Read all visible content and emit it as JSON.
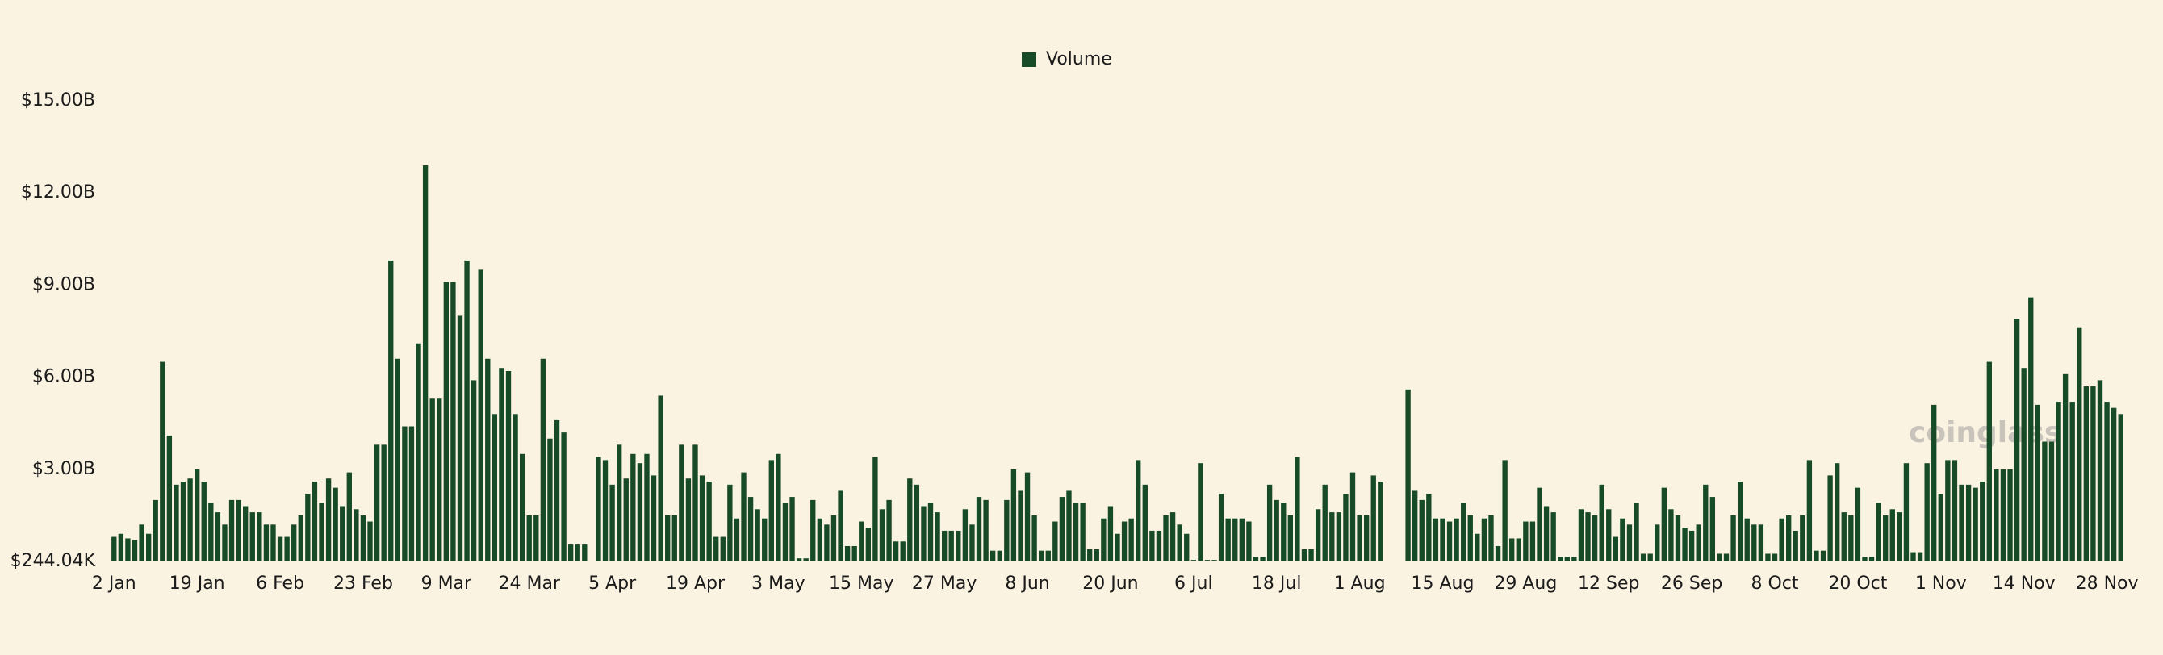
{
  "chart_data": {
    "type": "bar",
    "watermark": "coinglass",
    "legend": "top",
    "grid": false,
    "ylim": [
      244040,
      15000000000
    ],
    "yticks": [
      {
        "value": 244040,
        "label": "$244.04K"
      },
      {
        "value": 3000000000,
        "label": "$3.00B"
      },
      {
        "value": 6000000000,
        "label": "$6.00B"
      },
      {
        "value": 9000000000,
        "label": "$9.00B"
      },
      {
        "value": 12000000000,
        "label": "$12.00B"
      },
      {
        "value": 15000000000,
        "label": "$15.00B"
      }
    ],
    "categories": [
      "2 Jan",
      null,
      null,
      null,
      null,
      null,
      null,
      null,
      null,
      null,
      null,
      null,
      "19 Jan",
      null,
      null,
      null,
      null,
      null,
      null,
      null,
      null,
      null,
      null,
      null,
      "6 Feb",
      null,
      null,
      null,
      null,
      null,
      null,
      null,
      null,
      null,
      null,
      null,
      "23 Feb",
      null,
      null,
      null,
      null,
      null,
      null,
      null,
      null,
      null,
      null,
      null,
      "9 Mar",
      null,
      null,
      null,
      null,
      null,
      null,
      null,
      null,
      null,
      null,
      null,
      "24 Mar",
      null,
      null,
      null,
      null,
      null,
      null,
      null,
      null,
      null,
      null,
      null,
      "5 Apr",
      null,
      null,
      null,
      null,
      null,
      null,
      null,
      null,
      null,
      null,
      null,
      "19 Apr",
      null,
      null,
      null,
      null,
      null,
      null,
      null,
      null,
      null,
      null,
      null,
      "3 May",
      null,
      null,
      null,
      null,
      null,
      null,
      null,
      null,
      null,
      null,
      null,
      "15 May",
      null,
      null,
      null,
      null,
      null,
      null,
      null,
      null,
      null,
      null,
      null,
      "27 May",
      null,
      null,
      null,
      null,
      null,
      null,
      null,
      null,
      null,
      null,
      null,
      "8 Jun",
      null,
      null,
      null,
      null,
      null,
      null,
      null,
      null,
      null,
      null,
      null,
      "20 Jun",
      null,
      null,
      null,
      null,
      null,
      null,
      null,
      null,
      null,
      null,
      null,
      "6 Jul",
      null,
      null,
      null,
      null,
      null,
      null,
      null,
      null,
      null,
      null,
      null,
      "18 Jul",
      null,
      null,
      null,
      null,
      null,
      null,
      null,
      null,
      null,
      null,
      null,
      "1 Aug",
      null,
      null,
      null,
      null,
      null,
      null,
      null,
      null,
      null,
      null,
      null,
      "15 Aug",
      null,
      null,
      null,
      null,
      null,
      null,
      null,
      null,
      null,
      null,
      null,
      "29 Aug",
      null,
      null,
      null,
      null,
      null,
      null,
      null,
      null,
      null,
      null,
      null,
      "12 Sep",
      null,
      null,
      null,
      null,
      null,
      null,
      null,
      null,
      null,
      null,
      null,
      "26 Sep",
      null,
      null,
      null,
      null,
      null,
      null,
      null,
      null,
      null,
      null,
      null,
      "8 Oct",
      null,
      null,
      null,
      null,
      null,
      null,
      null,
      null,
      null,
      null,
      null,
      "20 Oct",
      null,
      null,
      null,
      null,
      null,
      null,
      null,
      null,
      null,
      null,
      null,
      "1 Nov",
      null,
      null,
      null,
      null,
      null,
      null,
      null,
      null,
      null,
      null,
      null,
      "14 Nov",
      null,
      null,
      null,
      null,
      null,
      null,
      null,
      null,
      null,
      null,
      null,
      "28 Nov",
      null,
      null
    ],
    "series": [
      {
        "name": "Volume",
        "color": "#174a27",
        "values": [
          800000000.0,
          900000000.0,
          750000000.0,
          700000000.0,
          1200000000.0,
          900000000.0,
          2000000000.0,
          6500000000.0,
          4100000000.0,
          2500000000.0,
          2600000000.0,
          2700000000.0,
          3000000000.0,
          2600000000.0,
          1900000000.0,
          1600000000.0,
          1200000000.0,
          2000000000.0,
          2000000000.0,
          1800000000.0,
          1600000000.0,
          1600000000.0,
          1200000000.0,
          1200000000.0,
          800000000.0,
          800000000.0,
          1200000000.0,
          1500000000.0,
          2200000000.0,
          2600000000.0,
          1900000000.0,
          2700000000.0,
          2400000000.0,
          1800000000.0,
          2900000000.0,
          1700000000.0,
          1500000000.0,
          1300000000.0,
          3800000000.0,
          3800000000.0,
          9800000000.0,
          6600000000.0,
          4400000000.0,
          4400000000.0,
          7100000000.0,
          12900000000.0,
          5300000000.0,
          5300000000.0,
          9100000000.0,
          9100000000.0,
          8000000000.0,
          9800000000.0,
          5900000000.0,
          9500000000.0,
          6600000000.0,
          4800000000.0,
          6300000000.0,
          6200000000.0,
          4800000000.0,
          3500000000.0,
          1500000000.0,
          1500000000.0,
          6600000000.0,
          4000000000.0,
          4600000000.0,
          4200000000.0,
          550000000.0,
          550000000.0,
          550000000.0,
          null,
          3400000000.0,
          3300000000.0,
          2500000000.0,
          3800000000.0,
          2700000000.0,
          3500000000.0,
          3200000000.0,
          3500000000.0,
          2800000000.0,
          5400000000.0,
          1500000000.0,
          1500000000.0,
          3800000000.0,
          2700000000.0,
          3800000000.0,
          2800000000.0,
          2600000000.0,
          800000000.0,
          800000000.0,
          2500000000.0,
          1400000000.0,
          2900000000.0,
          2100000000.0,
          1700000000.0,
          1400000000.0,
          3300000000.0,
          3500000000.0,
          1900000000.0,
          2100000000.0,
          100000000.0,
          100000000.0,
          2000000000.0,
          1400000000.0,
          1200000000.0,
          1500000000.0,
          2300000000.0,
          500000000.0,
          500000000.0,
          1300000000.0,
          1100000000.0,
          3400000000.0,
          1700000000.0,
          2000000000.0,
          650000000.0,
          650000000.0,
          2700000000.0,
          2500000000.0,
          1800000000.0,
          1900000000.0,
          1600000000.0,
          1000000000.0,
          1000000000.0,
          1000000000.0,
          1700000000.0,
          1200000000.0,
          2100000000.0,
          2000000000.0,
          350000000.0,
          350000000.0,
          2000000000.0,
          3000000000.0,
          2300000000.0,
          2900000000.0,
          1500000000.0,
          350000000.0,
          350000000.0,
          1300000000.0,
          2100000000.0,
          2300000000.0,
          1900000000.0,
          1900000000.0,
          400000000.0,
          400000000.0,
          1400000000.0,
          1800000000.0,
          900000000.0,
          1300000000.0,
          1400000000.0,
          3300000000.0,
          2500000000.0,
          1000000000.0,
          1000000000.0,
          1500000000.0,
          1600000000.0,
          1200000000.0,
          900000000.0,
          50000000.0,
          3200000000.0,
          50000000.0,
          50000000.0,
          2200000000.0,
          1400000000.0,
          1400000000.0,
          1400000000.0,
          1300000000.0,
          150000000.0,
          150000000.0,
          2500000000.0,
          2000000000.0,
          1900000000.0,
          1500000000.0,
          3400000000.0,
          400000000.0,
          400000000.0,
          1700000000.0,
          2500000000.0,
          1600000000.0,
          1600000000.0,
          2200000000.0,
          2900000000.0,
          1500000000.0,
          1500000000.0,
          2800000000.0,
          2600000000.0,
          null,
          null,
          null,
          5600000000.0,
          2300000000.0,
          2000000000.0,
          2200000000.0,
          1400000000.0,
          1400000000.0,
          1300000000.0,
          1400000000.0,
          1900000000.0,
          1500000000.0,
          900000000.0,
          1400000000.0,
          1500000000.0,
          500000000.0,
          3300000000.0,
          750000000.0,
          750000000.0,
          1300000000.0,
          1300000000.0,
          2400000000.0,
          1800000000.0,
          1600000000.0,
          150000000.0,
          150000000.0,
          150000000.0,
          1700000000.0,
          1600000000.0,
          1500000000.0,
          2500000000.0,
          1700000000.0,
          800000000.0,
          1400000000.0,
          1200000000.0,
          1900000000.0,
          250000000.0,
          250000000.0,
          1200000000.0,
          2400000000.0,
          1700000000.0,
          1500000000.0,
          1100000000.0,
          1000000000.0,
          1200000000.0,
          2500000000.0,
          2100000000.0,
          250000000.0,
          250000000.0,
          1500000000.0,
          2600000000.0,
          1400000000.0,
          1200000000.0,
          1200000000.0,
          250000000.0,
          250000000.0,
          1400000000.0,
          1500000000.0,
          1000000000.0,
          1500000000.0,
          3300000000.0,
          350000000.0,
          350000000.0,
          2800000000.0,
          3200000000.0,
          1600000000.0,
          1500000000.0,
          2400000000.0,
          150000000.0,
          150000000.0,
          1900000000.0,
          1500000000.0,
          1700000000.0,
          1600000000.0,
          3200000000.0,
          300000000.0,
          300000000.0,
          3200000000.0,
          5100000000.0,
          2200000000.0,
          3300000000.0,
          3300000000.0,
          2500000000.0,
          2500000000.0,
          2400000000.0,
          2600000000.0,
          6500000000.0,
          3000000000.0,
          3000000000.0,
          3000000000.0,
          7900000000.0,
          6300000000.0,
          8600000000.0,
          5100000000.0,
          3900000000.0,
          3900000000.0,
          5200000000.0,
          6100000000.0,
          5200000000.0,
          7600000000.0,
          5700000000.0,
          5700000000.0,
          5900000000.0,
          5200000000.0,
          5000000000.0,
          4800000000.0
        ]
      }
    ]
  }
}
